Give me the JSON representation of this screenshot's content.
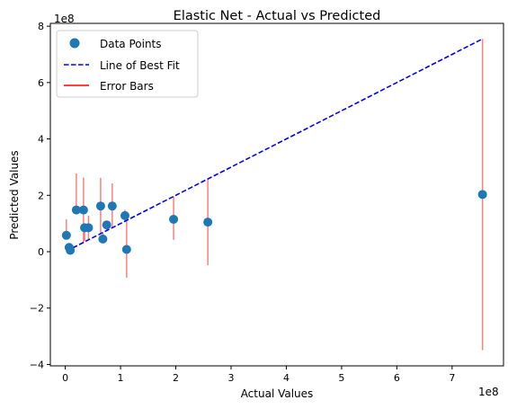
{
  "chart_data": {
    "type": "scatter",
    "title": "Elastic Net - Actual vs Predicted",
    "xlabel": "Actual Values",
    "ylabel": "Predicted Values",
    "x_offset_label": "1e8",
    "y_offset_label": "1e8",
    "xlim": [
      -0.27,
      7.93
    ],
    "ylim": [
      -4.05,
      8.1
    ],
    "xticks": [
      0,
      1,
      2,
      3,
      4,
      5,
      6,
      7
    ],
    "yticks": [
      -4,
      -2,
      0,
      2,
      4,
      6,
      8
    ],
    "xtick_labels": [
      "0",
      "1",
      "2",
      "3",
      "4",
      "5",
      "6",
      "7"
    ],
    "ytick_labels": [
      "−4",
      "−2",
      "0",
      "2",
      "4",
      "6",
      "8"
    ],
    "grid": false,
    "legend_position": "upper-left",
    "legend": [
      {
        "label": "Data Points",
        "kind": "marker",
        "color": "#1f77b4"
      },
      {
        "label": "Line of Best Fit",
        "kind": "dashed-line",
        "color": "#0000ff"
      },
      {
        "label": "Error Bars",
        "kind": "line",
        "color": "#ff0000"
      }
    ],
    "series": [
      {
        "name": "Data Points",
        "color": "#1f77b4",
        "x": [
          0.02,
          0.07,
          0.09,
          0.2,
          0.33,
          0.35,
          0.42,
          0.64,
          0.68,
          0.75,
          0.85,
          1.08,
          1.11,
          1.96,
          2.58,
          7.55
        ],
        "y": [
          0.58,
          0.15,
          0.05,
          1.48,
          1.48,
          0.85,
          0.85,
          1.62,
          0.45,
          0.95,
          1.62,
          1.28,
          0.08,
          1.15,
          1.05,
          2.03
        ]
      }
    ],
    "line_of_best_fit": {
      "name": "Line of Best Fit",
      "color": "#0000ff",
      "style": "dashed",
      "x": [
        0.02,
        7.55
      ],
      "y": [
        0.02,
        7.55
      ]
    },
    "error_bars": {
      "name": "Error Bars",
      "color": "#ff0000",
      "alpha": 0.5,
      "low": [
        0.55,
        0.07,
        0.02,
        1.48,
        0.33,
        0.38,
        0.42,
        0.64,
        0.43,
        0.75,
        0.85,
        1.08,
        -0.92,
        0.42,
        -0.48,
        -3.49
      ],
      "high": [
        1.15,
        0.15,
        0.09,
        2.78,
        2.63,
        0.85,
        1.28,
        2.62,
        0.68,
        0.95,
        2.42,
        1.48,
        1.11,
        1.96,
        2.58,
        7.55
      ]
    }
  }
}
